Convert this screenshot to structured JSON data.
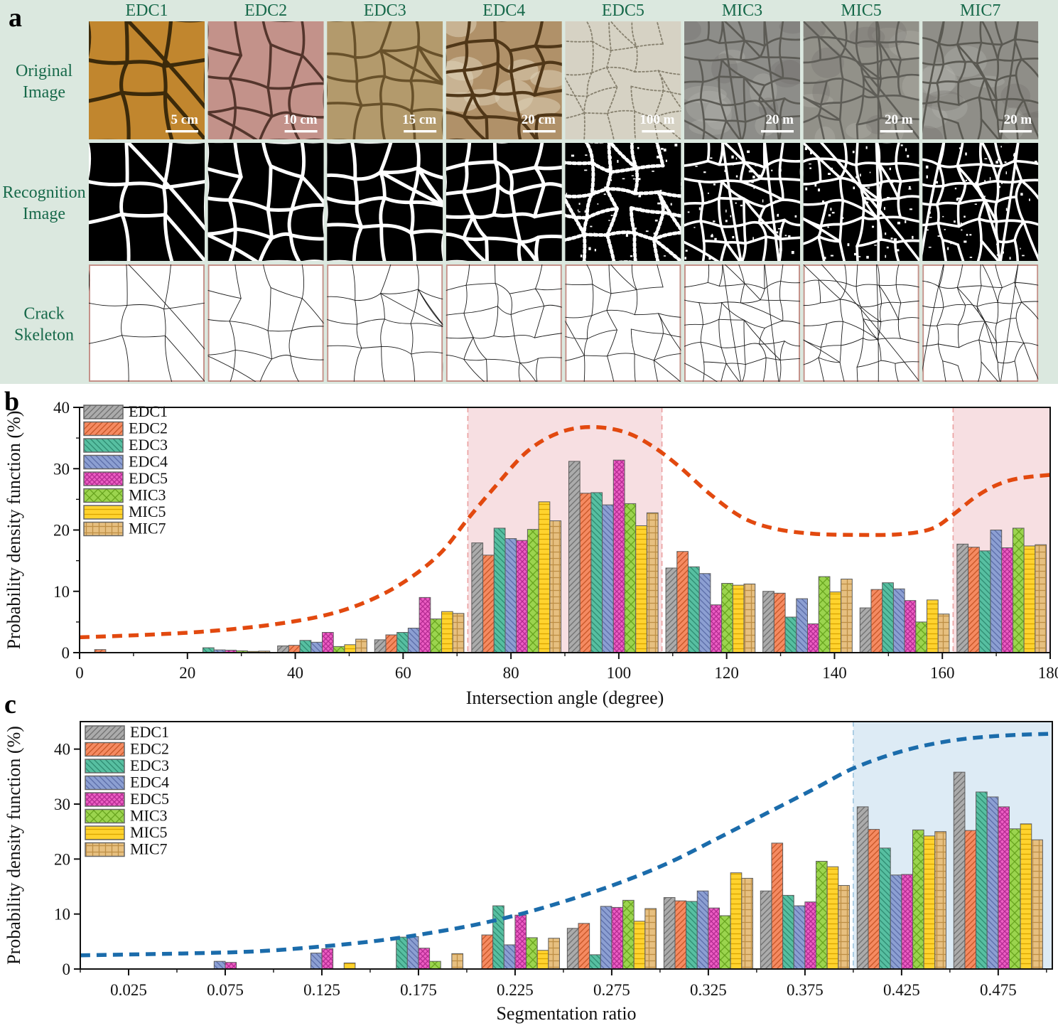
{
  "panel_a": {
    "label": "a",
    "row_labels": [
      {
        "lines": [
          "Original",
          "Image"
        ]
      },
      {
        "lines": [
          "Recognition",
          "Image"
        ]
      },
      {
        "lines": [
          "Crack",
          "Skeleton"
        ]
      }
    ],
    "columns": [
      {
        "name": "EDC1",
        "scale_bar": "5 cm",
        "photo_bg": "#c1862e",
        "crack_color": "#3c2a0a",
        "cells": 3,
        "extra": 2,
        "row1_width": 3.2
      },
      {
        "name": "EDC2",
        "scale_bar": "10 cm",
        "photo_bg": "#c3928a",
        "crack_color": "#54352c",
        "cells": 4,
        "extra": 2,
        "row1_width": 2.2
      },
      {
        "name": "EDC3",
        "scale_bar": "15 cm",
        "photo_bg": "#b39a6c",
        "crack_color": "#68512a",
        "cells": 4,
        "extra": 3,
        "row1_width": 2.2
      },
      {
        "name": "EDC4",
        "scale_bar": "20 cm",
        "photo_bg": "#b09169",
        "crack_color": "#503718",
        "cells": 5,
        "extra": 3,
        "row1_width": 2.6,
        "mottle": "#ddd0b6"
      },
      {
        "name": "EDC5",
        "scale_bar": "100 m",
        "photo_bg": "#d6d2c4",
        "crack_color": "#87816f",
        "cells": 5,
        "extra": 4,
        "row1_width": 1.1,
        "speckled": true
      },
      {
        "name": "MIC3",
        "scale_bar": "20 m",
        "photo_bg": "#8d8d89",
        "crack_color": "#5c5b55",
        "cells": 6,
        "extra": 6,
        "row1_width": 1.6,
        "micro": true
      },
      {
        "name": "MIC5",
        "scale_bar": "20 m",
        "photo_bg": "#929189",
        "crack_color": "#5e5d57",
        "cells": 6,
        "extra": 6,
        "row1_width": 1.6,
        "micro": true
      },
      {
        "name": "MIC7",
        "scale_bar": "20 m",
        "photo_bg": "#8f8e88",
        "crack_color": "#5a5952",
        "cells": 6,
        "extra": 7,
        "row1_width": 1.6,
        "micro": true
      }
    ],
    "colors": {
      "background": "#dbe8df",
      "header_text": "#17694a",
      "row_label_text": "#17694a",
      "skeleton_border": "#c49088",
      "recognition_bg": "#000000",
      "recognition_crack": "#ffffff",
      "skeleton_bg": "#ffffff",
      "skeleton_crack": "#1a1a1a",
      "scale_bar_text": "#ffffff"
    }
  },
  "series_style": [
    {
      "name": "EDC1",
      "color": "#ababab",
      "hatch": "d1",
      "hatch_color": "#6f6f6f"
    },
    {
      "name": "EDC2",
      "color": "#f58a61",
      "hatch": "d1",
      "hatch_color": "#c65425"
    },
    {
      "name": "EDC3",
      "color": "#57bfa1",
      "hatch": "d2",
      "hatch_color": "#2d8a70"
    },
    {
      "name": "EDC4",
      "color": "#8c9fd2",
      "hatch": "d2",
      "hatch_color": "#5a6ca8"
    },
    {
      "name": "EDC5",
      "color": "#ec5ec3",
      "hatch": "x",
      "hatch_color": "#b32a91"
    },
    {
      "name": "MIC3",
      "color": "#9bd44e",
      "hatch": "X",
      "hatch_color": "#67a31e"
    },
    {
      "name": "MIC5",
      "color": "#ffd32e",
      "hatch": "h",
      "hatch_color": "#d9a400"
    },
    {
      "name": "MIC7",
      "color": "#e7c080",
      "hatch": "g",
      "hatch_color": "#bd8f46"
    }
  ],
  "chart_data": [
    {
      "id": "b",
      "panel_label": "b",
      "type": "bar",
      "xlabel": "Intersection angle (degree)",
      "ylabel": "Probability density function (%)",
      "xlim": [
        0,
        180
      ],
      "ylim": [
        0,
        40
      ],
      "yticks": [
        0,
        10,
        20,
        30,
        40
      ],
      "xticks": [
        0,
        20,
        40,
        60,
        80,
        100,
        120,
        140,
        160,
        180
      ],
      "xtick_labels": [
        "0",
        "20",
        "40",
        "60",
        "80",
        "100",
        "120",
        "140",
        "160",
        "180"
      ],
      "minor_x_step": 10,
      "minor_y_step": 5,
      "bin_centers": [
        9,
        27,
        45,
        63,
        81,
        99,
        117,
        135,
        153,
        171
      ],
      "bin_width": 18,
      "legend_position": "top-left",
      "grid": false,
      "series": [
        {
          "name": "EDC1",
          "values": [
            0,
            0,
            1.1,
            2.1,
            17.9,
            31.2,
            13.8,
            10.0,
            7.3,
            17.7
          ]
        },
        {
          "name": "EDC2",
          "values": [
            0.5,
            0,
            1.2,
            2.9,
            15.9,
            26.0,
            16.5,
            9.7,
            10.3,
            17.2
          ]
        },
        {
          "name": "EDC3",
          "values": [
            0,
            0.8,
            2.0,
            3.3,
            20.3,
            26.1,
            14.0,
            5.8,
            11.4,
            16.6
          ]
        },
        {
          "name": "EDC4",
          "values": [
            0,
            0.45,
            1.7,
            4.0,
            18.6,
            24.1,
            12.9,
            8.8,
            10.4,
            20.0
          ]
        },
        {
          "name": "EDC5",
          "values": [
            0,
            0.4,
            3.3,
            9.0,
            18.3,
            31.4,
            7.8,
            4.7,
            8.5,
            17.1
          ]
        },
        {
          "name": "MIC3",
          "values": [
            0,
            0.3,
            1.0,
            5.5,
            20.1,
            24.3,
            11.3,
            12.4,
            5.0,
            20.3
          ]
        },
        {
          "name": "MIC5",
          "values": [
            0,
            0.2,
            1.3,
            6.7,
            24.6,
            20.7,
            11.0,
            9.9,
            8.6,
            17.4
          ]
        },
        {
          "name": "MIC7",
          "values": [
            0,
            0.25,
            2.2,
            6.4,
            21.5,
            22.8,
            11.2,
            12.0,
            6.3,
            17.6
          ]
        }
      ],
      "curve": {
        "color": "#e2490f",
        "points": [
          [
            0,
            2.5
          ],
          [
            12,
            2.9
          ],
          [
            24,
            3.5
          ],
          [
            36,
            4.6
          ],
          [
            46,
            6.2
          ],
          [
            54,
            8.6
          ],
          [
            61,
            12
          ],
          [
            67,
            16.3
          ],
          [
            72,
            21.8
          ],
          [
            77,
            27
          ],
          [
            83,
            32.8
          ],
          [
            89,
            35.9
          ],
          [
            95,
            36.8
          ],
          [
            101,
            36
          ],
          [
            106,
            33.8
          ],
          [
            111,
            30.5
          ],
          [
            117,
            25.8
          ],
          [
            123,
            22
          ],
          [
            129,
            20.2
          ],
          [
            136,
            19.4
          ],
          [
            144,
            19.2
          ],
          [
            152,
            19.3
          ],
          [
            158,
            20.2
          ],
          [
            162,
            22.5
          ],
          [
            166,
            25.3
          ],
          [
            170,
            27.3
          ],
          [
            174,
            28.4
          ],
          [
            180,
            29
          ]
        ]
      },
      "shaded_regions": [
        {
          "from": 72,
          "to": 108
        },
        {
          "from": 162,
          "to": 180
        }
      ],
      "shade_color": "#f7dfe2",
      "shade_edge_color": "#eb9f9f",
      "shade_top_color": "#222222",
      "shade_bottom_color": "#a23333"
    },
    {
      "id": "c",
      "panel_label": "c",
      "type": "bar",
      "xlabel": "Segmentation ratio",
      "ylabel": "Probability density function (%)",
      "xlim": [
        0,
        0.503
      ],
      "ylim": [
        0,
        45
      ],
      "yticks": [
        0,
        10,
        20,
        30,
        40
      ],
      "xticks": [
        0.025,
        0.075,
        0.125,
        0.175,
        0.225,
        0.275,
        0.325,
        0.375,
        0.425,
        0.475
      ],
      "xtick_labels": [
        "0.025",
        "0.075",
        "0.125",
        "0.175",
        "0.225",
        "0.275",
        "0.325",
        "0.375",
        "0.425",
        "0.475"
      ],
      "minor_x_step": 0.025,
      "minor_y_step": 5,
      "bin_centers": [
        0.025,
        0.075,
        0.125,
        0.175,
        0.225,
        0.275,
        0.325,
        0.375,
        0.425,
        0.475
      ],
      "bin_width": 0.05,
      "legend_position": "top-left",
      "grid": false,
      "series": [
        {
          "name": "EDC1",
          "values": [
            0,
            0,
            0,
            0,
            0,
            7.4,
            13.0,
            14.2,
            29.5,
            35.8
          ]
        },
        {
          "name": "EDC2",
          "values": [
            0,
            0,
            0,
            0,
            6.2,
            8.3,
            12.4,
            22.9,
            25.4,
            25.2
          ]
        },
        {
          "name": "EDC3",
          "values": [
            0,
            0,
            0,
            5.8,
            11.5,
            2.6,
            12.3,
            13.4,
            22.0,
            32.2
          ]
        },
        {
          "name": "EDC4",
          "values": [
            0,
            1.4,
            2.9,
            5.9,
            4.4,
            11.4,
            14.2,
            11.5,
            17.1,
            31.3
          ]
        },
        {
          "name": "EDC5",
          "values": [
            0,
            1.2,
            3.7,
            3.8,
            9.8,
            11.2,
            11.1,
            12.2,
            17.2,
            29.5
          ]
        },
        {
          "name": "MIC3",
          "values": [
            0,
            0,
            0,
            1.4,
            5.7,
            12.5,
            9.7,
            19.6,
            25.3,
            25.5
          ]
        },
        {
          "name": "MIC5",
          "values": [
            0,
            0,
            1.1,
            0,
            3.4,
            8.7,
            17.5,
            18.6,
            24.2,
            26.4
          ]
        },
        {
          "name": "MIC7",
          "values": [
            0,
            0,
            0,
            2.8,
            5.6,
            11.0,
            16.5,
            15.2,
            25.0,
            23.5
          ]
        }
      ],
      "curve": {
        "color": "#1b6cab",
        "points": [
          [
            0,
            2.5
          ],
          [
            0.05,
            2.8
          ],
          [
            0.09,
            3.2
          ],
          [
            0.125,
            4.1
          ],
          [
            0.155,
            5.2
          ],
          [
            0.18,
            6.5
          ],
          [
            0.205,
            8.1
          ],
          [
            0.23,
            10.2
          ],
          [
            0.255,
            12.8
          ],
          [
            0.28,
            15.8
          ],
          [
            0.305,
            19.4
          ],
          [
            0.33,
            23.8
          ],
          [
            0.355,
            28.3
          ],
          [
            0.38,
            32.8
          ],
          [
            0.4,
            36.5
          ],
          [
            0.425,
            39.6
          ],
          [
            0.45,
            41.5
          ],
          [
            0.475,
            42.4
          ],
          [
            0.503,
            42.8
          ]
        ]
      },
      "shaded_regions": [
        {
          "from": 0.4,
          "to": 0.503
        }
      ],
      "shade_color": "#ddebf5",
      "shade_edge_color": "#9cc4de",
      "shade_top_color": "#222222",
      "shade_bottom_color": "#2a4a6b"
    }
  ]
}
